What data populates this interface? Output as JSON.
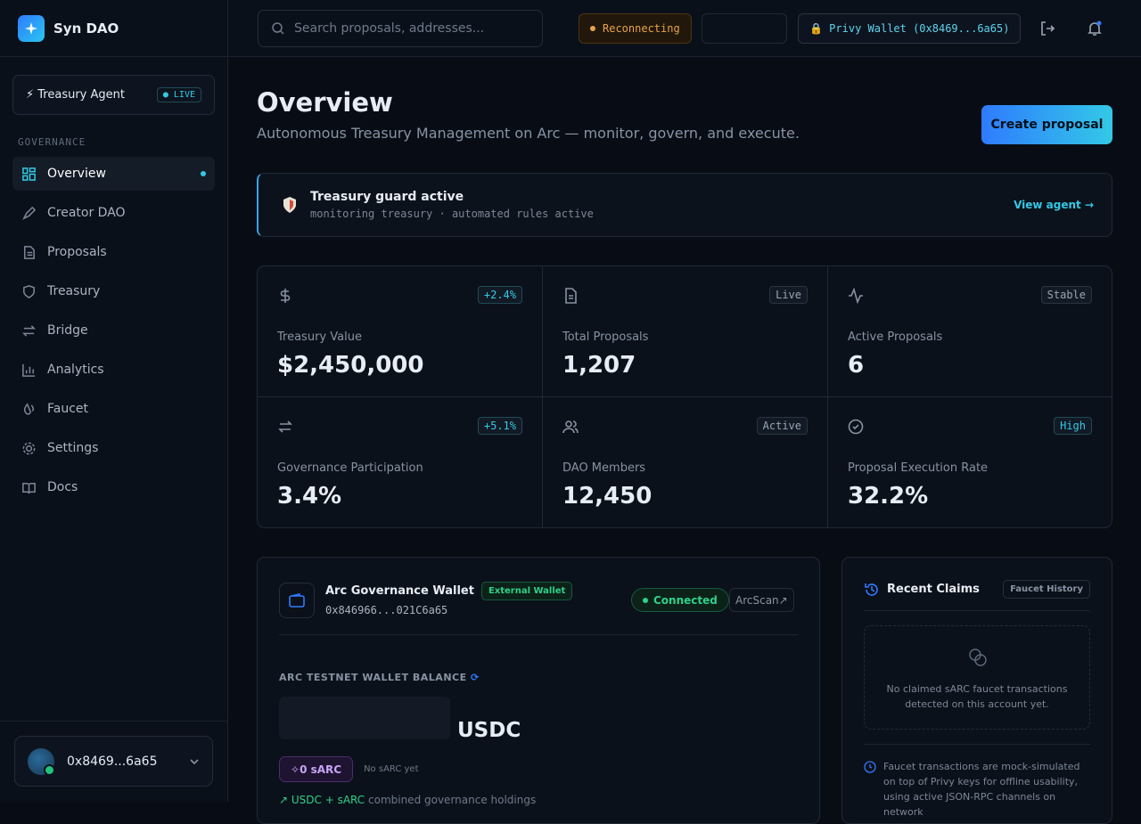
{
  "sidebar": {
    "brand": "Syn DAO",
    "agent": {
      "label": "⚡ Treasury Agent",
      "badge": "LIVE"
    },
    "section": "GOVERNANCE",
    "nav": [
      "Overview",
      "Creator DAO",
      "Proposals",
      "Treasury",
      "Bridge",
      "Analytics",
      "Faucet",
      "Settings",
      "Docs"
    ],
    "account": "0x8469...6a65"
  },
  "topbar": {
    "search_placeholder": "Search proposals, addresses...",
    "status": "Reconnecting",
    "wallet": "🔒 Privy Wallet (0x8469...6a65)"
  },
  "header": {
    "title": "Overview",
    "subtitle": "Autonomous Treasury Management on Arc — monitor, govern, and execute.",
    "button": "Create proposal"
  },
  "guard": {
    "title": "Treasury guard active",
    "detail": "monitoring treasury · automated rules active",
    "link": "View agent →"
  },
  "stats": [
    {
      "badge": "+2.4%",
      "label": "Treasury Value",
      "value": "$2,450,000"
    },
    {
      "badge": "Live",
      "label": "Total Proposals",
      "value": "1,207"
    },
    {
      "badge": "Stable",
      "label": "Active Proposals",
      "value": "6"
    },
    {
      "badge": "+5.1%",
      "label": "Governance Participation",
      "value": "3.4%"
    },
    {
      "badge": "Active",
      "label": "DAO Members",
      "value": "12,450"
    },
    {
      "badge": "High",
      "label": "Proposal Execution Rate",
      "value": "32.2%"
    }
  ],
  "wallet": {
    "title": "Arc Governance Wallet",
    "tag": "External Wallet",
    "address": "0x846966...021C6a65",
    "status": "Connected",
    "link": "ArcScan",
    "balance_label": "ARC TESTNET WALLET BALANCE",
    "unit": "USDC",
    "sarc": "0 sARC",
    "sarc_note": "No sARC yet",
    "holdings": "USDC + sARC",
    "holdings_note": "combined governance holdings"
  },
  "claims": {
    "title": "Recent Claims",
    "tag": "Faucet History",
    "empty": "No claimed sARC faucet transactions detected on this account yet.",
    "note": "Faucet transactions are mock-simulated on top of Privy keys for offline usability, using active JSON-RPC channels on network"
  }
}
